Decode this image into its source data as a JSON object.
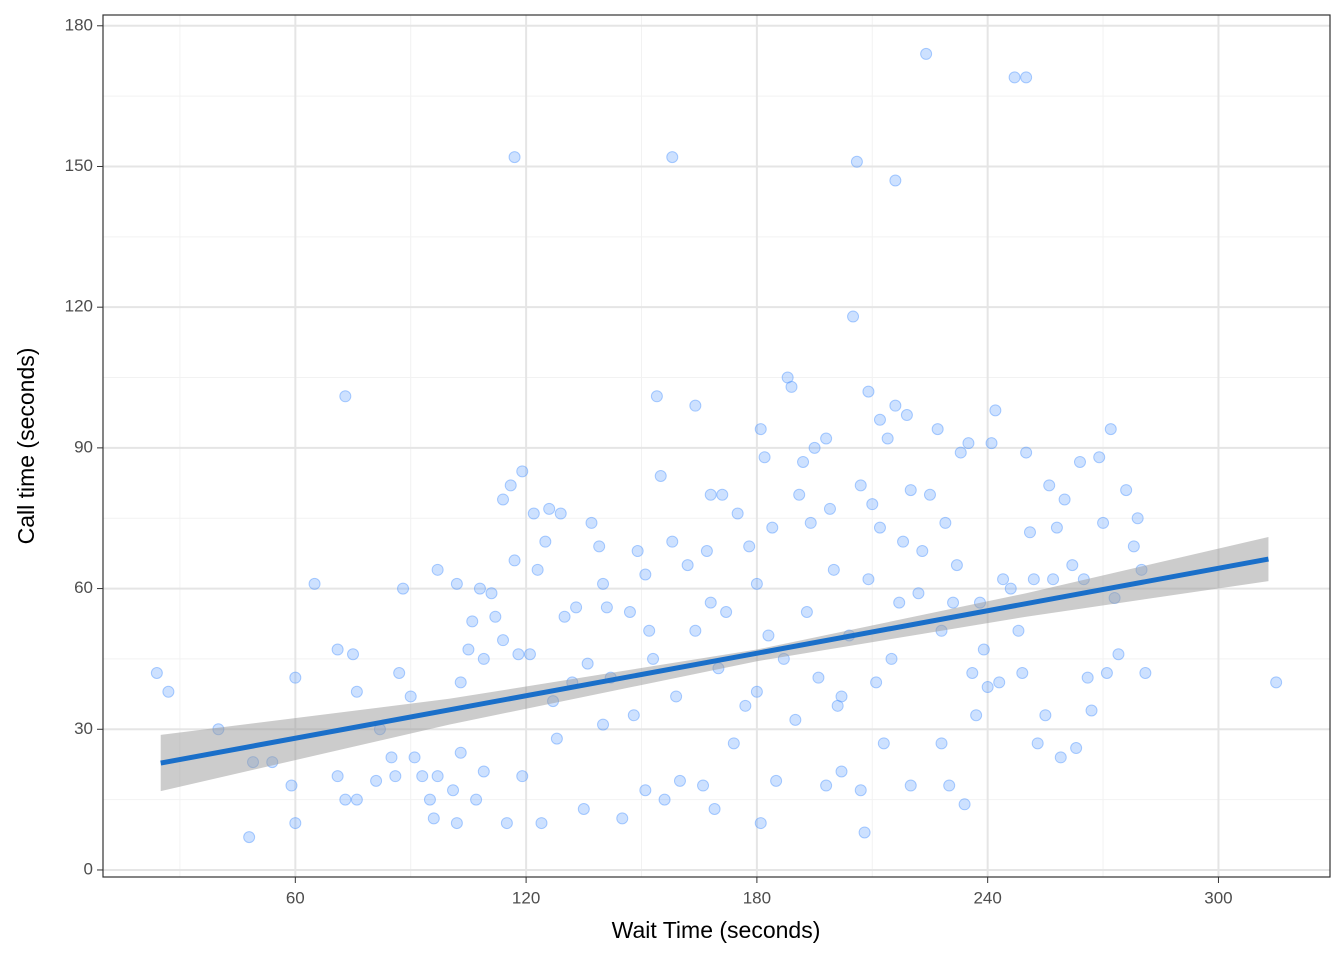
{
  "chart_data": {
    "type": "scatter",
    "xlabel": "Wait Time (seconds)",
    "ylabel": "Call time (seconds)",
    "color": "#4d94ff",
    "x": [
      24,
      27,
      40,
      48,
      49,
      54,
      59,
      60,
      60,
      65,
      71,
      73,
      75,
      76,
      71,
      73,
      76,
      81,
      82,
      85,
      86,
      87,
      88,
      90,
      91,
      93,
      95,
      96,
      97,
      97,
      101,
      102,
      102,
      103,
      103,
      105,
      106,
      107,
      108,
      109,
      109,
      111,
      112,
      114,
      114,
      115,
      116,
      117,
      117,
      118,
      119,
      119,
      121,
      122,
      123,
      124,
      125,
      126,
      127,
      128,
      129,
      130,
      132,
      133,
      135,
      136,
      137,
      139,
      140,
      140,
      141,
      142,
      145,
      147,
      148,
      149,
      151,
      151,
      152,
      153,
      154,
      155,
      156,
      158,
      158,
      159,
      160,
      162,
      164,
      164,
      166,
      167,
      168,
      168,
      169,
      170,
      171,
      172,
      174,
      175,
      177,
      178,
      180,
      180,
      181,
      181,
      182,
      183,
      184,
      185,
      187,
      188,
      189,
      190,
      191,
      192,
      193,
      194,
      195,
      196,
      198,
      198,
      199,
      200,
      201,
      202,
      202,
      204,
      205,
      206,
      207,
      207,
      208,
      209,
      209,
      210,
      211,
      212,
      212,
      213,
      214,
      215,
      216,
      216,
      217,
      218,
      219,
      220,
      220,
      222,
      223,
      224,
      225,
      227,
      228,
      228,
      229,
      230,
      231,
      232,
      233,
      234,
      235,
      236,
      237,
      238,
      239,
      240,
      241,
      242,
      243,
      244,
      246,
      247,
      248,
      249,
      250,
      250,
      251,
      252,
      253,
      255,
      256,
      257,
      258,
      259,
      260,
      262,
      263,
      264,
      265,
      266,
      267,
      269,
      270,
      271,
      272,
      273,
      274,
      276,
      278,
      279,
      280,
      281,
      315
    ],
    "y": [
      42,
      38,
      30,
      7,
      23,
      23,
      18,
      41,
      10,
      61,
      47,
      101,
      46,
      38,
      20,
      15,
      15,
      19,
      30,
      24,
      20,
      42,
      60,
      37,
      24,
      20,
      15,
      11,
      20,
      64,
      17,
      10,
      61,
      40,
      25,
      47,
      53,
      15,
      60,
      45,
      21,
      59,
      54,
      79,
      49,
      10,
      82,
      152,
      66,
      46,
      85,
      20,
      46,
      76,
      64,
      10,
      70,
      77,
      36,
      28,
      76,
      54,
      40,
      56,
      13,
      44,
      74,
      69,
      31,
      61,
      56,
      41,
      11,
      55,
      33,
      68,
      17,
      63,
      51,
      45,
      101,
      84,
      15,
      152,
      70,
      37,
      19,
      65,
      99,
      51,
      18,
      68,
      80,
      57,
      13,
      43,
      80,
      55,
      27,
      76,
      35,
      69,
      61,
      38,
      94,
      10,
      88,
      50,
      73,
      19,
      45,
      105,
      103,
      32,
      80,
      87,
      55,
      74,
      90,
      41,
      18,
      92,
      77,
      64,
      35,
      21,
      37,
      50,
      118,
      151,
      17,
      82,
      8,
      62,
      102,
      78,
      40,
      73,
      96,
      27,
      92,
      45,
      147,
      99,
      57,
      70,
      97,
      18,
      81,
      59,
      68,
      174,
      80,
      94,
      27,
      51,
      74,
      18,
      57,
      65,
      89,
      14,
      91,
      42,
      33,
      57,
      47,
      39,
      91,
      98,
      40,
      62,
      60,
      169,
      51,
      42,
      89,
      169,
      72,
      62,
      27,
      33,
      82,
      62,
      73,
      24,
      79,
      65,
      26,
      87,
      62,
      41,
      34,
      88,
      74,
      42,
      94,
      58,
      46,
      81,
      69,
      75,
      64,
      42,
      40
    ],
    "trend": {
      "x": [
        25,
        313
      ],
      "y": [
        22.8,
        66.3
      ],
      "color": "#1a6fc9"
    },
    "band": {
      "x": [
        25,
        100,
        180,
        250,
        313
      ],
      "lower": [
        16.8,
        31,
        44.5,
        54,
        61.6
      ],
      "upper": [
        28.8,
        36.5,
        47,
        59,
        71
      ],
      "color": "#999999"
    },
    "xlim": [
      10,
      329
    ],
    "ylim": [
      -1.5,
      182.3
    ],
    "xticks": [
      60,
      120,
      180,
      240,
      300
    ],
    "yticks": [
      0,
      30,
      60,
      90,
      120,
      150,
      180
    ],
    "xminor": [
      30,
      90,
      150,
      210,
      270
    ],
    "yminor": [
      15,
      45,
      75,
      105,
      135,
      165
    ],
    "grid": true
  }
}
